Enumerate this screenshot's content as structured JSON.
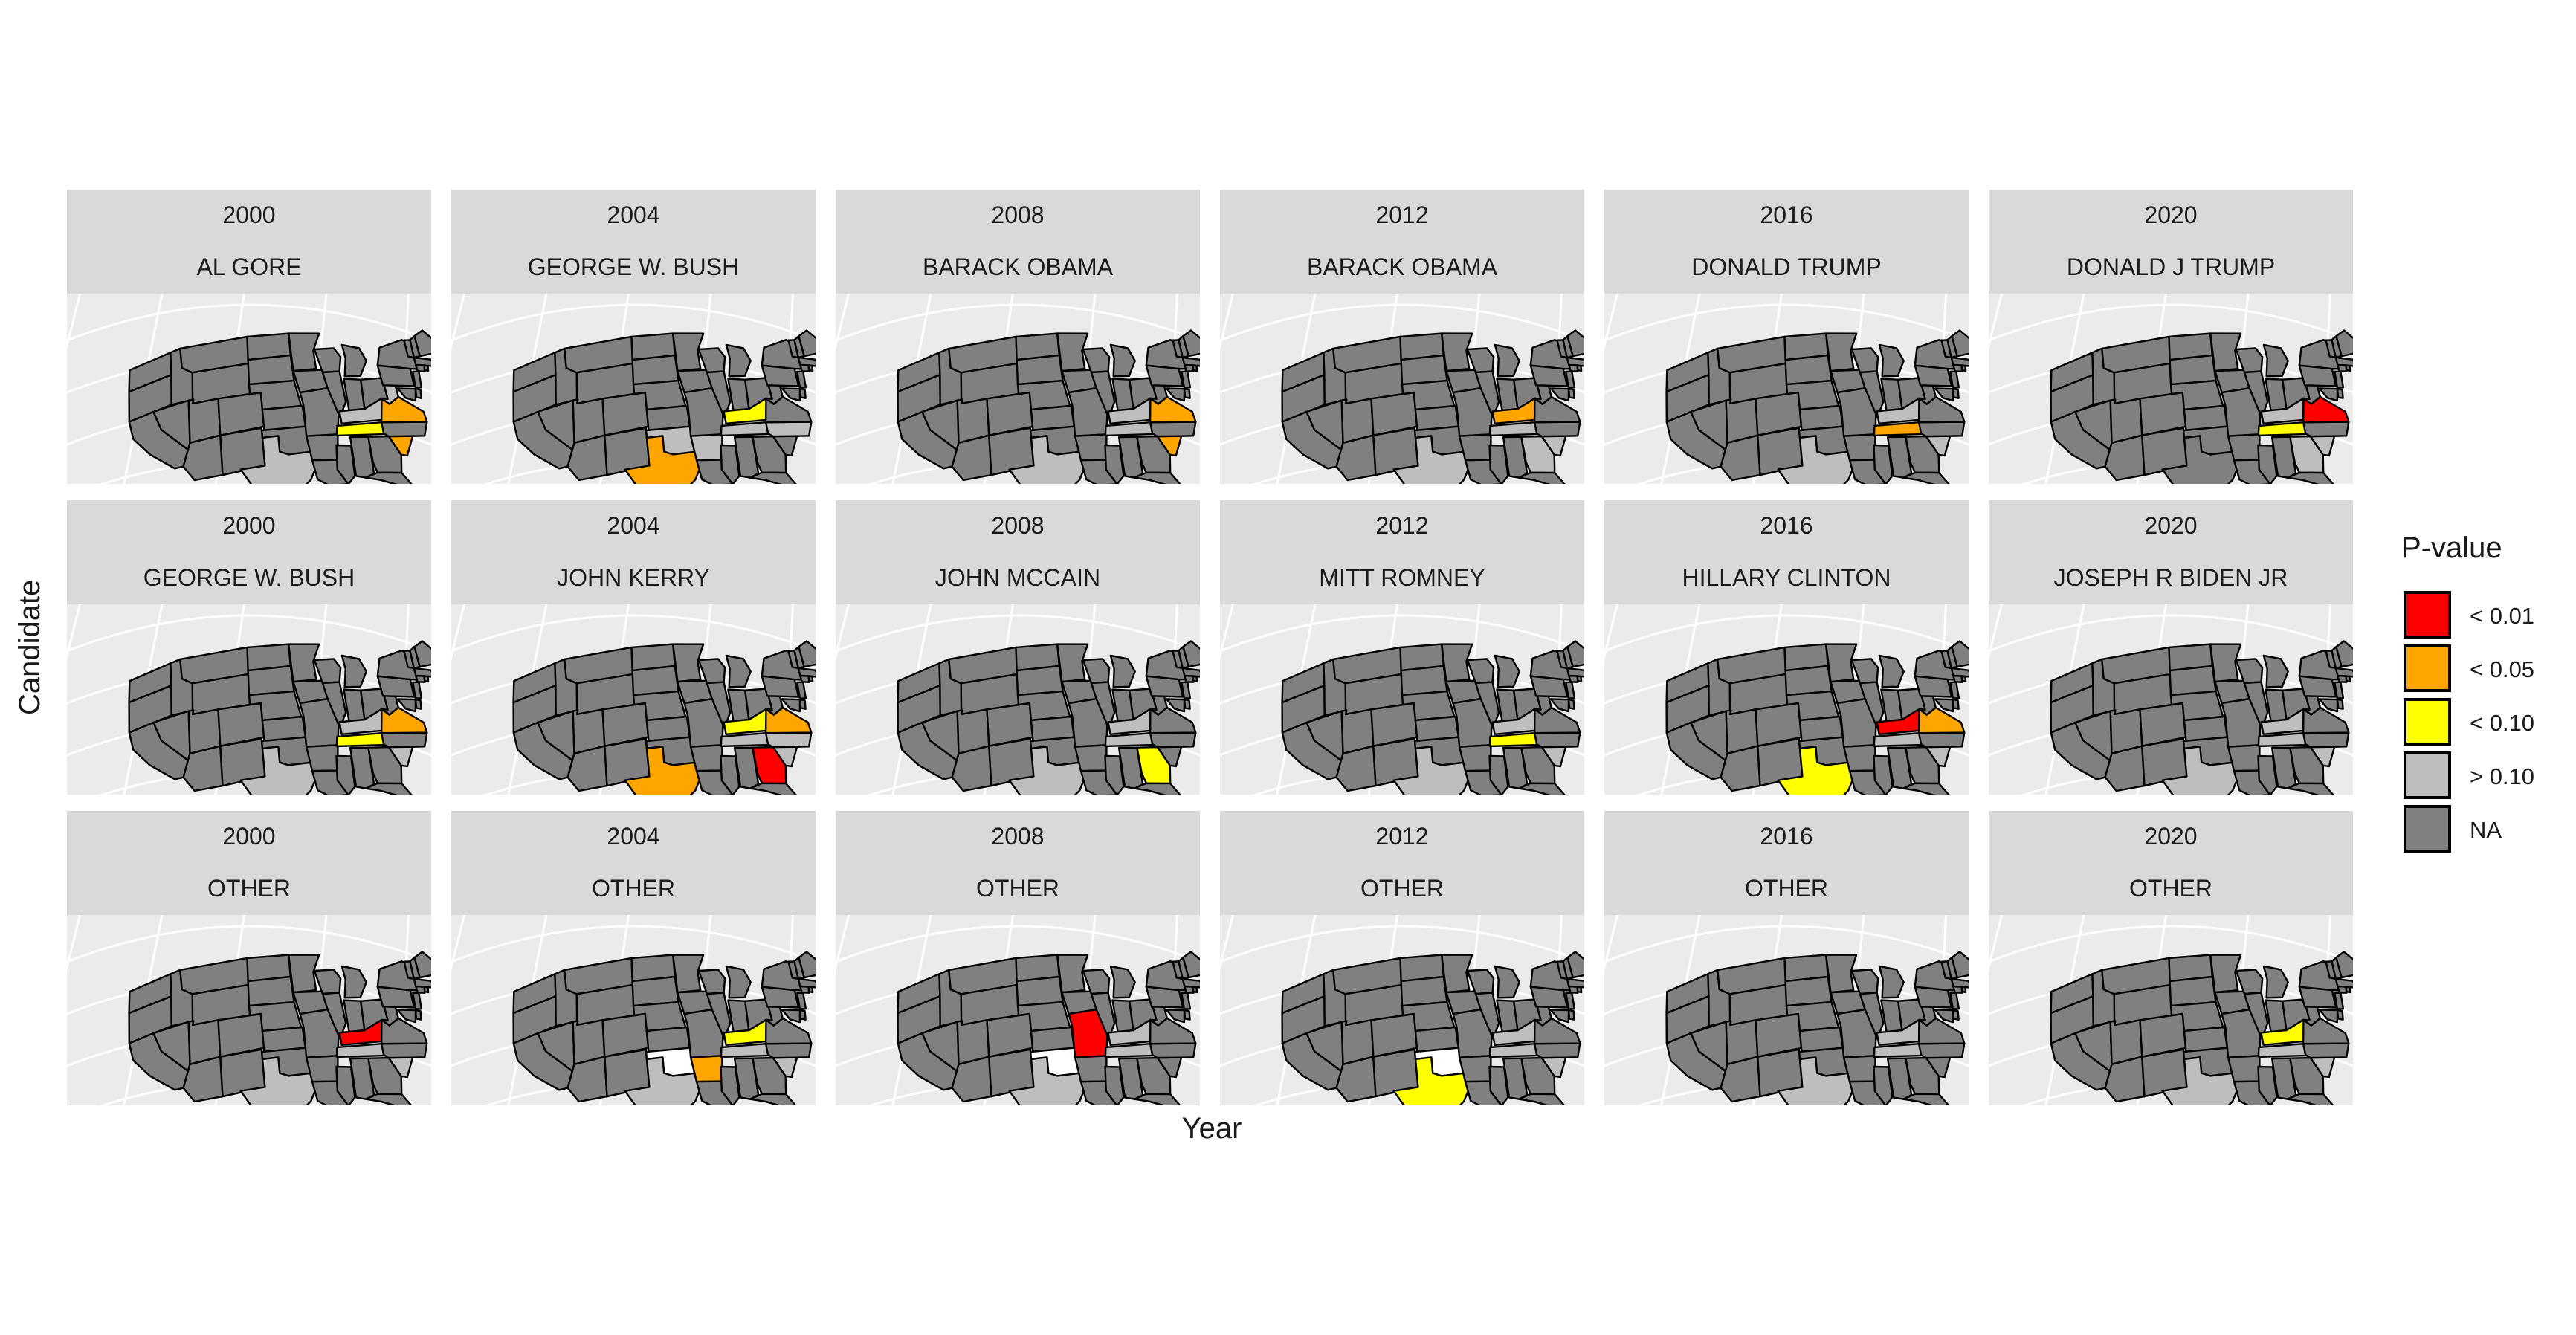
{
  "axes": {
    "xlabel": "Year",
    "ylabel": "Candidate"
  },
  "legend": {
    "title": "P-value",
    "items": [
      {
        "key": "lt001",
        "label": "< 0.01",
        "color": "#ff0000"
      },
      {
        "key": "lt005",
        "label": "< 0.05",
        "color": "#ffa500"
      },
      {
        "key": "lt010",
        "label": "< 0.10",
        "color": "#ffff00"
      },
      {
        "key": "gt010",
        "label": "> 0.10",
        "color": "#bebebe"
      },
      {
        "key": "na",
        "label": "NA",
        "color": "#808080"
      }
    ],
    "unmatched_color": "#ffffff"
  },
  "facets": {
    "years": [
      "2000",
      "2004",
      "2008",
      "2012",
      "2016",
      "2020"
    ],
    "rows": [
      [
        {
          "year": "2000",
          "candidate": "AL GORE",
          "states": {
            "TN": "lt010",
            "KY": "gt010",
            "WV": "gt010",
            "VA": "lt005",
            "SC": "lt005",
            "TX": "gt010"
          }
        },
        {
          "year": "2004",
          "candidate": "GEORGE W. BUSH",
          "states": {
            "TX": "lt005",
            "KY": "lt010",
            "TN": "gt010",
            "NC": "gt010",
            "AR": "gt010",
            "OK": "gt010"
          }
        },
        {
          "year": "2008",
          "candidate": "BARACK OBAMA",
          "states": {
            "VA": "lt005",
            "SC": "lt005",
            "TN": "gt010",
            "TX": "gt010",
            "KY": "gt010"
          }
        },
        {
          "year": "2012",
          "candidate": "BARACK OBAMA",
          "states": {
            "KY": "lt005",
            "TN": "gt010",
            "TX": "gt010",
            "SC": "gt010",
            "GA": "gt010"
          }
        },
        {
          "year": "2016",
          "candidate": "DONALD TRUMP",
          "states": {
            "TN": "lt005",
            "TX": "gt010",
            "KY": "gt010",
            "SC": "gt010"
          }
        },
        {
          "year": "2020",
          "candidate": "DONALD J TRUMP",
          "states": {
            "TN": "lt010",
            "VA": "lt001",
            "KY": "gt010",
            "SC": "gt010",
            "GA": "gt010"
          }
        }
      ],
      [
        {
          "year": "2000",
          "candidate": "GEORGE W. BUSH",
          "states": {
            "TN": "lt010",
            "VA": "lt005",
            "KY": "gt010",
            "SC": "gt010",
            "TX": "gt010"
          }
        },
        {
          "year": "2004",
          "candidate": "JOHN KERRY",
          "states": {
            "TX": "lt005",
            "GA": "lt001",
            "VA": "lt005",
            "KY": "lt010",
            "TN": "gt010",
            "NC": "gt010",
            "SC": "gt010"
          }
        },
        {
          "year": "2008",
          "candidate": "JOHN MCCAIN",
          "states": {
            "GA": "lt010",
            "TX": "gt010",
            "TN": "gt010",
            "KY": "gt010"
          }
        },
        {
          "year": "2012",
          "candidate": "MITT ROMNEY",
          "states": {
            "TN": "lt010",
            "TX": "gt010",
            "KY": "gt010",
            "SC": "gt010"
          }
        },
        {
          "year": "2016",
          "candidate": "HILLARY CLINTON",
          "states": {
            "TX": "lt010",
            "KY": "lt001",
            "VA": "lt005",
            "TN": "gt010",
            "SC": "gt010"
          }
        },
        {
          "year": "2020",
          "candidate": "JOSEPH R BIDEN JR",
          "states": {
            "TN": "gt010",
            "KY": "gt010",
            "TX": "gt010",
            "SC": "gt010"
          }
        }
      ],
      [
        {
          "year": "2000",
          "candidate": "OTHER",
          "states": {
            "KY": "lt001",
            "TN": "gt010",
            "TX": "gt010",
            "SC": "gt010"
          }
        },
        {
          "year": "2004",
          "candidate": "OTHER",
          "states": {
            "AR": "lt005",
            "KY": "lt010",
            "OK": "none",
            "TN": "gt010",
            "TX": "gt010",
            "SC": "gt010"
          }
        },
        {
          "year": "2008",
          "candidate": "OTHER",
          "states": {
            "MO": "lt001",
            "OK": "none",
            "TN": "gt010",
            "TX": "gt010",
            "KY": "gt010"
          }
        },
        {
          "year": "2012",
          "candidate": "OTHER",
          "states": {
            "TX": "lt010",
            "OK": "none",
            "TN": "gt010",
            "KY": "gt010",
            "SC": "gt010"
          }
        },
        {
          "year": "2016",
          "candidate": "OTHER",
          "states": {
            "TX": "gt010",
            "TN": "gt010",
            "KY": "gt010"
          }
        },
        {
          "year": "2020",
          "candidate": "OTHER",
          "states": {
            "KY": "lt010",
            "TN": "gt010",
            "SC": "gt010",
            "TX": "gt010"
          }
        }
      ]
    ]
  }
}
